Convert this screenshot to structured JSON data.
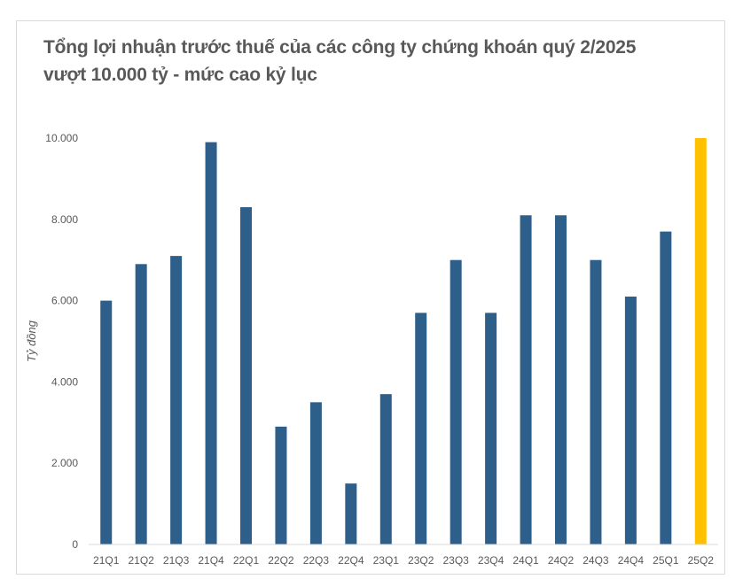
{
  "chart_data": {
    "type": "bar",
    "title_line1": "Tổng lợi nhuận trước thuế của các công ty chứng khoán quý 2/2025",
    "title_line2": "vượt 10.000 tỷ - mức cao kỷ lục",
    "xlabel": "",
    "ylabel": "Tỷ đồng",
    "categories": [
      "21Q1",
      "21Q2",
      "21Q3",
      "21Q4",
      "22Q1",
      "22Q2",
      "22Q3",
      "22Q4",
      "23Q1",
      "23Q2",
      "23Q3",
      "23Q4",
      "24Q1",
      "24Q2",
      "24Q3",
      "24Q4",
      "25Q1",
      "25Q2"
    ],
    "values": [
      6000,
      6900,
      7100,
      9900,
      8300,
      2900,
      3500,
      1500,
      3700,
      5700,
      7000,
      5700,
      8100,
      8100,
      7000,
      6100,
      7700,
      10000
    ],
    "ylim": [
      0,
      10000
    ],
    "y_ticks": [
      0,
      2000,
      4000,
      6000,
      8000,
      10000
    ],
    "y_tick_labels": [
      "0",
      "2.000",
      "4.000",
      "6.000",
      "8.000",
      "10.000"
    ],
    "grid": false,
    "colors": {
      "default_bar": "#2e5f8a",
      "highlight_bar": "#ffc000",
      "text": "#595959",
      "axis_line": "#d9d9d9"
    },
    "highlight_category": "25Q2"
  }
}
